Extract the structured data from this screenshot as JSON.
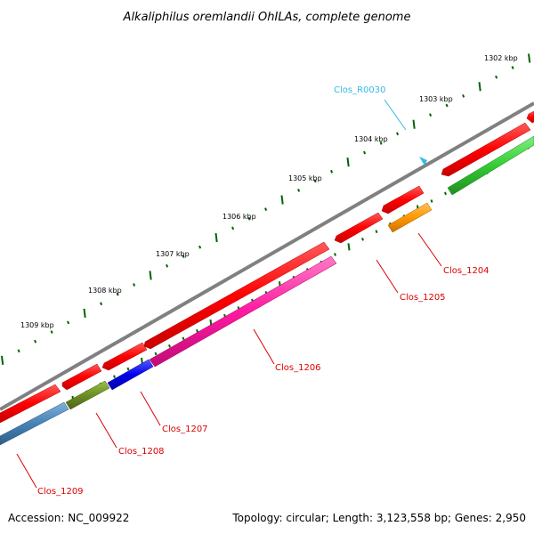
{
  "title": "Alkaliphilus oremlandii OhILAs, complete genome",
  "footer": {
    "accession": "Accession: NC_009922",
    "summary": "Topology: circular; Length: 3,123,558 bp; Genes: 2,950"
  },
  "scale": {
    "ticks": [
      {
        "label": "1302 kbp"
      },
      {
        "label": "1303 kbp"
      },
      {
        "label": "1304 kbp"
      },
      {
        "label": "1305 kbp"
      },
      {
        "label": "1306 kbp"
      },
      {
        "label": "1307 kbp"
      },
      {
        "label": "1308 kbp"
      },
      {
        "label": "1309 kbp"
      }
    ]
  },
  "labels": [
    {
      "text": "Clos_R0030",
      "color": "#33bbe6"
    },
    {
      "text": "Clos_1204",
      "color": "#dd0000"
    },
    {
      "text": "Clos_1205",
      "color": "#dd0000"
    },
    {
      "text": "Clos_1206",
      "color": "#dd0000"
    },
    {
      "text": "Clos_1207",
      "color": "#dd0000"
    },
    {
      "text": "Clos_1208",
      "color": "#dd0000"
    },
    {
      "text": "Clos_1209",
      "color": "#dd0000"
    }
  ],
  "colors": {
    "backbone": "#808080",
    "cds_forward": "#ff0000",
    "cds_reverse_green": "#33cc33",
    "cds_orange": "#ff9900",
    "cds_pink": "#ff1aa0",
    "cds_blue": "#0000ee",
    "cds_olive": "#6b8e23",
    "cds_steel": "#4682b4",
    "trna": "#33bbe6",
    "ticks": "#006400"
  }
}
